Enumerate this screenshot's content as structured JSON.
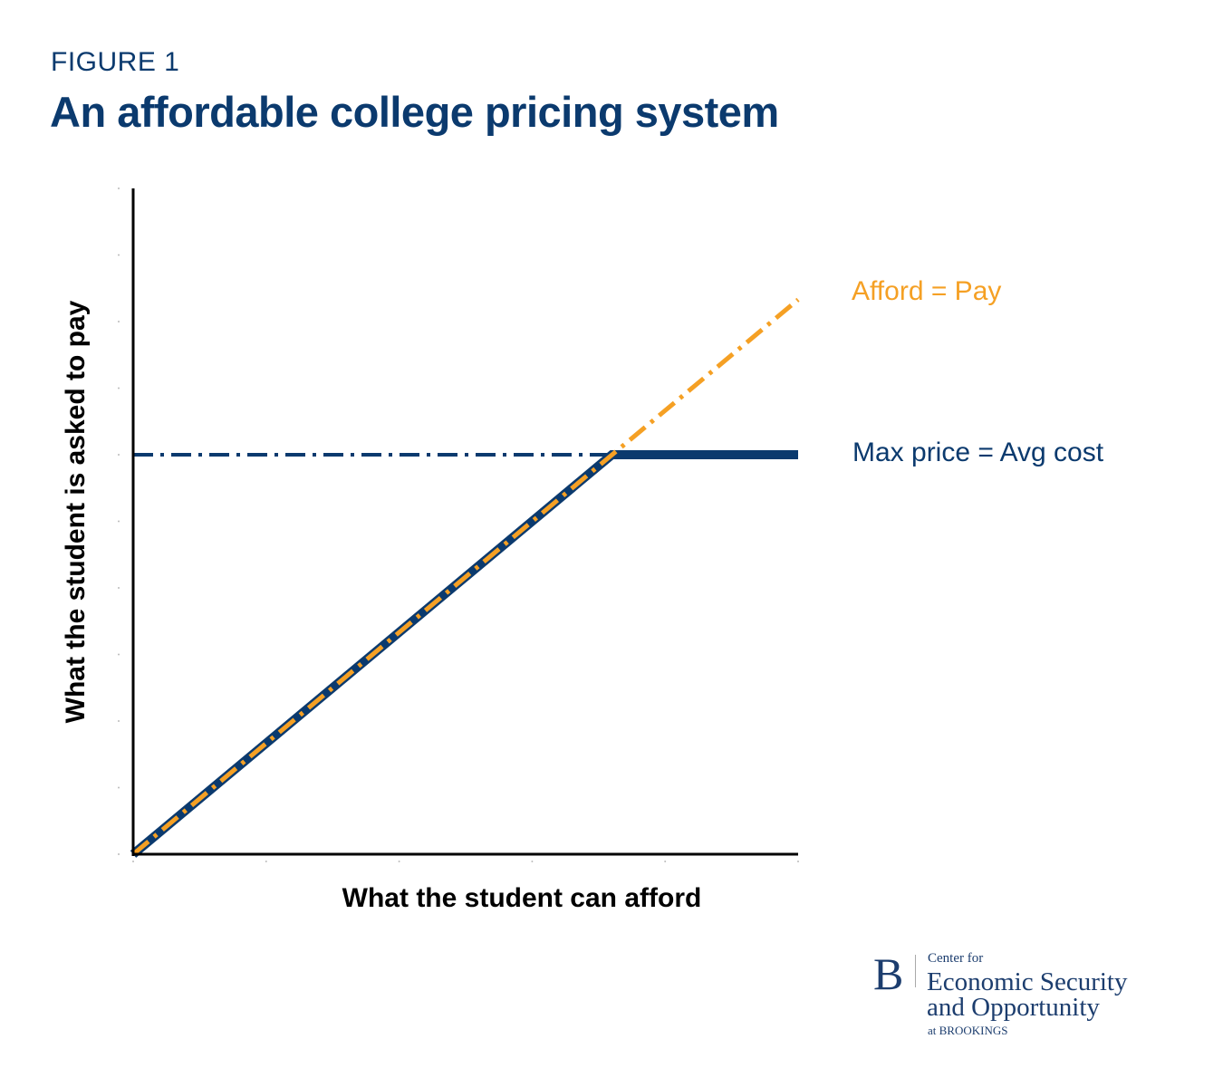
{
  "header": {
    "figure_label": "FIGURE 1",
    "title": "An affordable college pricing system"
  },
  "colors": {
    "navy": "#0b3a6e",
    "orange": "#f5a024",
    "axis": "#000000"
  },
  "chart_data": {
    "type": "line",
    "title": "An affordable college pricing system",
    "xlabel": "What the student can afford",
    "ylabel": "What the student is asked to pay",
    "xlim": [
      0,
      5
    ],
    "ylim": [
      0,
      10
    ],
    "x_ticks": [
      0,
      1,
      2,
      3,
      4,
      5
    ],
    "y_ticks": [
      0,
      1,
      2,
      3,
      4,
      5,
      6,
      7,
      8,
      9,
      10
    ],
    "tick_labels_shown": false,
    "grid": false,
    "legend": "none (inline labels at right)",
    "series": [
      {
        "name": "Afford = Pay",
        "style": "dash-dot",
        "color": "#f5a024",
        "points": [
          [
            0,
            0
          ],
          [
            5,
            8.33
          ]
        ]
      },
      {
        "name": "Max price = Avg cost",
        "style": "dash-dot",
        "color": "#0b3a6e",
        "points": [
          [
            0,
            6
          ],
          [
            3.6,
            6
          ]
        ]
      },
      {
        "style": "solid-thick",
        "color": "#0b3a6e",
        "points": [
          [
            0,
            0
          ],
          [
            3.6,
            6
          ],
          [
            5,
            6
          ]
        ]
      }
    ]
  },
  "logo": {
    "mark": "B",
    "line1": "Center for",
    "line2": "Economic Security",
    "line3": "and Opportunity",
    "line4": "at BROOKINGS"
  }
}
